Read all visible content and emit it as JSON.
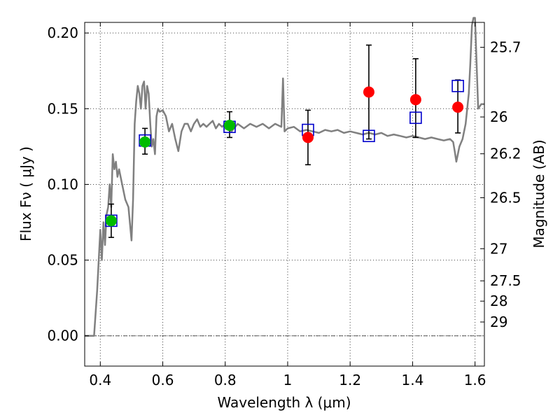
{
  "chart_data": {
    "type": "scatter",
    "xlabel": "Wavelength  λ (μm)",
    "ylabel": "Flux  Fν  ( μJy )",
    "y2label": "Magnitude (AB)",
    "xlim": [
      0.35,
      1.63
    ],
    "ylim": [
      -0.02,
      0.207
    ],
    "x_ticks": [
      0.4,
      0.6,
      0.8,
      1.0,
      1.2,
      1.4,
      1.6
    ],
    "x_tick_labels": [
      "0.4",
      "0.6",
      "0.8",
      "1",
      "1.2",
      "1.4",
      "1.6"
    ],
    "y_ticks": [
      0.0,
      0.05,
      0.1,
      0.15,
      0.2
    ],
    "y_tick_labels": [
      "0.00",
      "0.05",
      "0.10",
      "0.15",
      "0.20"
    ],
    "mag_ticks": [
      25.7,
      26,
      26.2,
      26.5,
      27,
      27.5,
      28,
      29
    ],
    "mag_tick_labels": [
      "25.7",
      "26",
      "26.2",
      "26.5",
      "27",
      "27.5",
      "28",
      "29"
    ],
    "grid": true,
    "zero_line": 0.0,
    "colors": {
      "spectrum": "#808080",
      "green_points": "#00bb00",
      "red_points": "#ff0000",
      "model_boxes": "#0000cc",
      "error_bars": "#000000"
    },
    "series": [
      {
        "marker": "circle-green",
        "x": [
          0.435,
          0.543,
          0.814
        ],
        "y": [
          0.076,
          0.128,
          0.139
        ],
        "yerr_low": [
          0.011,
          0.008,
          0.008
        ],
        "yerr_high": [
          0.011,
          0.009,
          0.009
        ]
      },
      {
        "marker": "circle-red",
        "x": [
          1.065,
          1.26,
          1.41,
          1.545
        ],
        "y": [
          0.131,
          0.161,
          0.156,
          0.151
        ],
        "yerr_low": [
          0.018,
          0.031,
          0.025,
          0.017
        ],
        "yerr_high": [
          0.018,
          0.031,
          0.027,
          0.018
        ]
      },
      {
        "marker": "square-blue-open",
        "x": [
          0.435,
          0.543,
          0.814,
          1.065,
          1.26,
          1.41,
          1.545
        ],
        "y": [
          0.076,
          0.129,
          0.138,
          0.136,
          0.132,
          0.144,
          0.165
        ]
      },
      {
        "marker": "line-gray",
        "x": [
          0.35,
          0.38,
          0.39,
          0.4,
          0.405,
          0.41,
          0.415,
          0.42,
          0.425,
          0.43,
          0.435,
          0.44,
          0.445,
          0.45,
          0.455,
          0.46,
          0.47,
          0.48,
          0.49,
          0.5,
          0.505,
          0.51,
          0.515,
          0.52,
          0.525,
          0.53,
          0.535,
          0.54,
          0.545,
          0.55,
          0.555,
          0.56,
          0.565,
          0.57,
          0.575,
          0.58,
          0.585,
          0.59,
          0.6,
          0.61,
          0.62,
          0.63,
          0.64,
          0.65,
          0.66,
          0.67,
          0.68,
          0.69,
          0.7,
          0.71,
          0.72,
          0.73,
          0.74,
          0.75,
          0.76,
          0.77,
          0.78,
          0.79,
          0.8,
          0.82,
          0.84,
          0.86,
          0.88,
          0.9,
          0.92,
          0.94,
          0.96,
          0.98,
          0.985,
          0.99,
          1.0,
          1.02,
          1.04,
          1.06,
          1.08,
          1.1,
          1.12,
          1.14,
          1.16,
          1.18,
          1.2,
          1.22,
          1.24,
          1.26,
          1.28,
          1.3,
          1.32,
          1.34,
          1.36,
          1.38,
          1.4,
          1.42,
          1.44,
          1.46,
          1.48,
          1.5,
          1.52,
          1.53,
          1.535,
          1.54,
          1.545,
          1.55,
          1.56,
          1.57,
          1.58,
          1.585,
          1.59,
          1.595,
          1.6,
          1.61,
          1.62,
          1.63
        ],
        "y": [
          0.0,
          0.0,
          0.03,
          0.07,
          0.05,
          0.075,
          0.06,
          0.08,
          0.085,
          0.1,
          0.085,
          0.12,
          0.11,
          0.115,
          0.105,
          0.11,
          0.1,
          0.09,
          0.085,
          0.063,
          0.09,
          0.14,
          0.155,
          0.165,
          0.16,
          0.15,
          0.165,
          0.168,
          0.15,
          0.165,
          0.16,
          0.14,
          0.125,
          0.13,
          0.12,
          0.145,
          0.15,
          0.148,
          0.149,
          0.145,
          0.135,
          0.14,
          0.13,
          0.122,
          0.135,
          0.14,
          0.14,
          0.135,
          0.14,
          0.143,
          0.138,
          0.14,
          0.138,
          0.14,
          0.142,
          0.137,
          0.14,
          0.138,
          0.14,
          0.135,
          0.14,
          0.137,
          0.14,
          0.138,
          0.14,
          0.137,
          0.14,
          0.138,
          0.17,
          0.135,
          0.137,
          0.138,
          0.135,
          0.136,
          0.135,
          0.134,
          0.136,
          0.135,
          0.136,
          0.134,
          0.135,
          0.134,
          0.133,
          0.134,
          0.133,
          0.134,
          0.132,
          0.133,
          0.132,
          0.131,
          0.132,
          0.131,
          0.13,
          0.131,
          0.13,
          0.129,
          0.13,
          0.128,
          0.122,
          0.115,
          0.12,
          0.125,
          0.13,
          0.14,
          0.16,
          0.18,
          0.205,
          0.21,
          0.21,
          0.15,
          0.153,
          0.153
        ]
      }
    ]
  }
}
